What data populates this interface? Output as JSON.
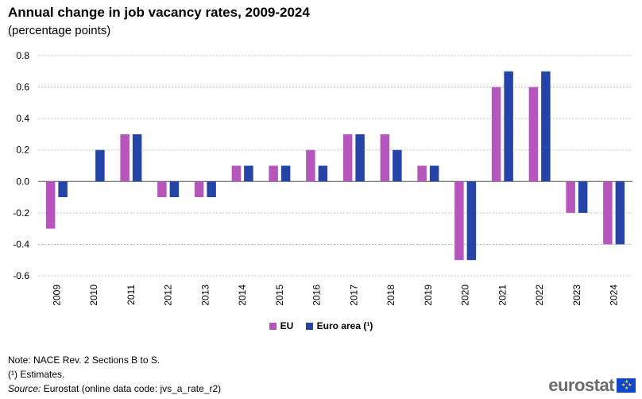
{
  "header": {
    "title": "Annual change in job vacancy rates, 2009-2024",
    "subtitle": "(percentage points)"
  },
  "colors": {
    "eu": "#b656bd",
    "euro_area": "#2644a7",
    "grid": "#b3b3b3"
  },
  "legend": {
    "items": [
      {
        "label": "EU"
      },
      {
        "label": "Euro area (¹)"
      }
    ]
  },
  "notes": {
    "note": "Note: NACE Rev. 2 Sections B to S.",
    "footnote": "(¹) Estimates.",
    "source_label": "Source:",
    "source_text": " Eurostat (online data code: jvs_a_rate_r2)"
  },
  "logo": {
    "text": "eurostat",
    "icon": "eu-flag-icon"
  },
  "chart_data": {
    "type": "bar",
    "title": "Annual change in job vacancy rates, 2009-2024",
    "subtitle": "(percentage points)",
    "xlabel": "",
    "ylabel": "",
    "categories": [
      "2009",
      "2010",
      "2011",
      "2012",
      "2013",
      "2014",
      "2015",
      "2016",
      "2017",
      "2018",
      "2019",
      "2020",
      "2021",
      "2022",
      "2023",
      "2024"
    ],
    "series": [
      {
        "name": "EU",
        "values": [
          -0.3,
          0.0,
          0.3,
          -0.1,
          -0.1,
          0.1,
          0.1,
          0.2,
          0.3,
          0.3,
          0.1,
          -0.5,
          0.6,
          0.6,
          -0.2,
          -0.4
        ]
      },
      {
        "name": "Euro area (¹)",
        "values": [
          -0.1,
          0.2,
          0.3,
          -0.1,
          -0.1,
          0.1,
          0.1,
          0.1,
          0.3,
          0.2,
          0.1,
          -0.5,
          0.7,
          0.7,
          -0.2,
          -0.4
        ]
      }
    ],
    "yticks": [
      "0.8",
      "0.6",
      "0.4",
      "0.2",
      "0.0",
      "-0.2",
      "-0.4",
      "-0.6"
    ],
    "ylim": [
      -0.6,
      0.8
    ],
    "grid": true,
    "legend_position": "bottom-center"
  }
}
